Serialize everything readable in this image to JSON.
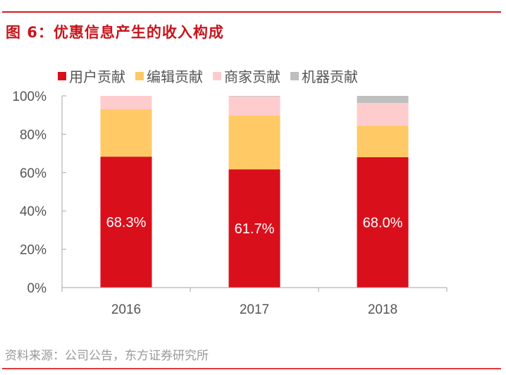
{
  "figure": {
    "title": "图 6：优惠信息产生的收入构成",
    "source": "资料来源：公司公告，东方证券研究所"
  },
  "colors": {
    "rule": "#d7161e",
    "title": "#c8141c"
  },
  "chart_data": {
    "type": "bar",
    "stacked": true,
    "title": "图 6：优惠信息产生的收入构成",
    "xlabel": "",
    "ylabel": "",
    "categories": [
      "2016",
      "2017",
      "2018"
    ],
    "ylim": [
      0,
      100
    ],
    "yticks": [
      "0%",
      "20%",
      "40%",
      "60%",
      "80%",
      "100%"
    ],
    "legend_position": "top",
    "grid": false,
    "series": [
      {
        "name": "用户贡献",
        "color": "#d9101c",
        "values": [
          68.3,
          61.7,
          68.0
        ]
      },
      {
        "name": "编辑贡献",
        "color": "#ffc966",
        "values": [
          24.7,
          28.1,
          16.5
        ]
      },
      {
        "name": "商家贡献",
        "color": "#ffcccd",
        "values": [
          7.0,
          9.9,
          11.8
        ]
      },
      {
        "name": "机器贡献",
        "color": "#bfbfbf",
        "values": [
          0.0,
          0.3,
          3.7
        ]
      }
    ],
    "data_labels": [
      "68.3%",
      "61.7%",
      "68.0%"
    ]
  }
}
